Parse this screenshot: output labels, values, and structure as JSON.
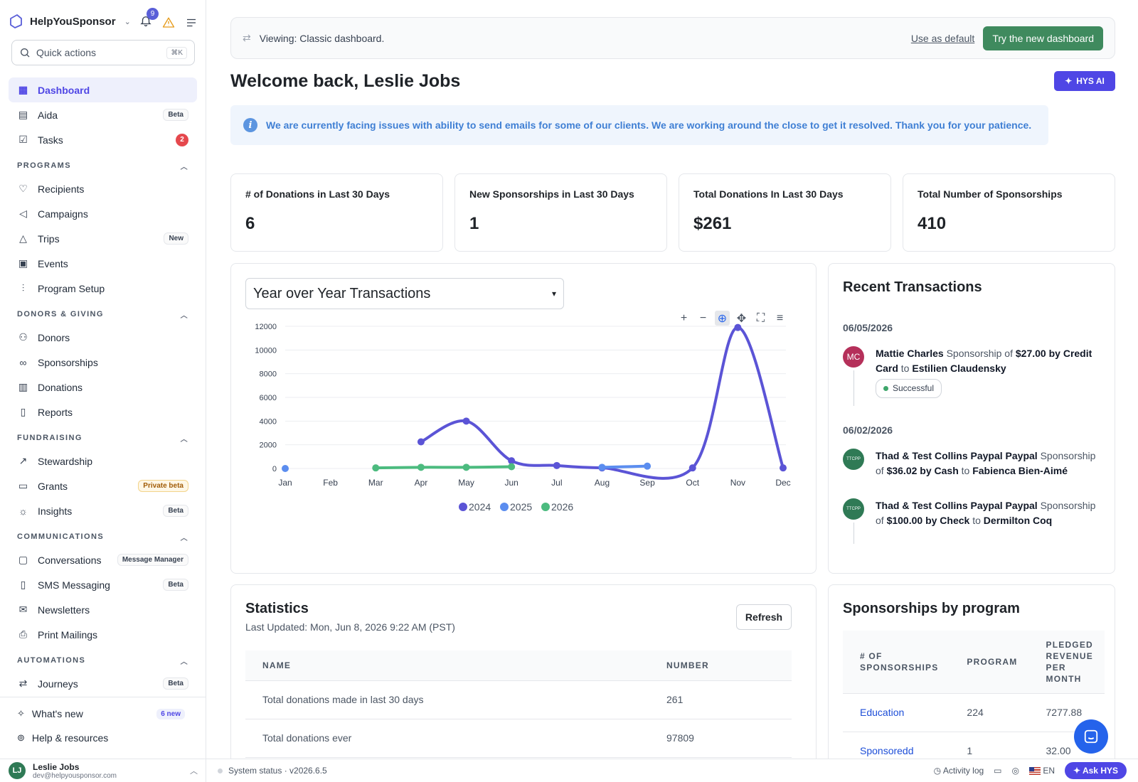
{
  "brand": {
    "name": "HelpYouSponsor",
    "notifications": "9"
  },
  "quick": {
    "placeholder": "Quick actions",
    "shortcut": "⌘K"
  },
  "nav": {
    "top": [
      {
        "label": "Dashboard",
        "icon": "dashboard-icon",
        "active": true
      },
      {
        "label": "Aida",
        "icon": "clipboard-icon",
        "badge": "Beta"
      },
      {
        "label": "Tasks",
        "icon": "tasks-icon",
        "badge": "2"
      }
    ],
    "sections": [
      {
        "title": "PROGRAMS",
        "items": [
          "Recipients",
          "Campaigns",
          "Trips",
          "Events",
          "Program Setup"
        ],
        "badges": {
          "Trips": "New"
        }
      },
      {
        "title": "DONORS & GIVING",
        "items": [
          "Donors",
          "Sponsorships",
          "Donations",
          "Reports"
        ]
      },
      {
        "title": "FUNDRAISING",
        "items": [
          "Stewardship",
          "Grants",
          "Insights"
        ],
        "badges": {
          "Grants": "Private beta",
          "Insights": "Beta"
        }
      },
      {
        "title": "COMMUNICATIONS",
        "items": [
          "Conversations",
          "SMS Messaging",
          "Newsletters",
          "Print Mailings"
        ],
        "badges": {
          "Conversations": "Message Manager",
          "SMS Messaging": "Beta"
        }
      },
      {
        "title": "AUTOMATIONS",
        "items": [
          "Journeys"
        ],
        "badges": {
          "Journeys": "Beta"
        }
      }
    ],
    "footer": [
      {
        "label": "What's new",
        "badge": "6 new"
      },
      {
        "label": "Help & resources"
      }
    ]
  },
  "user": {
    "initials": "LJ",
    "name": "Leslie Jobs",
    "email": "dev@helpyousponsor.com"
  },
  "banner": {
    "text": "Viewing: Classic dashboard.",
    "use_default": "Use as default",
    "try_new": "Try the new dashboard"
  },
  "welcome": "Welcome back, Leslie Jobs",
  "hys_ai": "HYS AI",
  "alert": "We are currently facing issues with ability to send emails for some of our clients. We are working around the close to get it resolved. Thank you for your patience.",
  "cards": [
    {
      "label": "# of Donations in Last 30 Days",
      "value": "6"
    },
    {
      "label": "New Sponsorships in Last 30 Days",
      "value": "1"
    },
    {
      "label": "Total Donations In Last 30 Days",
      "value": "$261"
    },
    {
      "label": "Total Number of Sponsorships",
      "value": "410"
    }
  ],
  "chart_select": "Year over Year Transactions",
  "chart_data": {
    "type": "line",
    "categories": [
      "Jan",
      "Feb",
      "Mar",
      "Apr",
      "May",
      "Jun",
      "Jul",
      "Aug",
      "Sep",
      "Oct",
      "Nov",
      "Dec"
    ],
    "ylim": [
      0,
      12000
    ],
    "yticks": [
      0,
      2000,
      4000,
      6000,
      8000,
      10000,
      12000
    ],
    "legend_position": "bottom",
    "series": [
      {
        "name": "2024",
        "color": "#5b54d6",
        "points": [
          [
            3,
            2250
          ],
          [
            4,
            4000
          ],
          [
            5,
            650
          ],
          [
            6,
            250
          ],
          [
            7,
            50
          ],
          [
            9,
            50
          ],
          [
            10,
            11900
          ],
          [
            11,
            50
          ]
        ]
      },
      {
        "name": "2025",
        "color": "#5b8def",
        "points": [
          [
            0,
            0
          ],
          [
            7,
            100
          ],
          [
            8,
            200
          ]
        ]
      },
      {
        "name": "2026",
        "color": "#4cbb7f",
        "points": [
          [
            2,
            50
          ],
          [
            3,
            100
          ],
          [
            4,
            100
          ],
          [
            5,
            150
          ]
        ]
      }
    ]
  },
  "recent": {
    "title": "Recent Transactions",
    "groups": [
      {
        "date": "06/05/2026",
        "items": [
          {
            "initials": "MC",
            "color": "#b5305a",
            "donor": "Mattie Charles",
            "kind": "Sponsorship of",
            "amount": "$27.00 by Credit Card",
            "to": "to",
            "recipient": "Estilien Claudensky",
            "status": "Successful"
          }
        ]
      },
      {
        "date": "06/02/2026",
        "items": [
          {
            "initials": "TTCPP",
            "color": "#2f7a55",
            "donor": "Thad & Test Collins Paypal Paypal",
            "kind": "Sponsorship of",
            "amount": "$36.02 by Cash",
            "to": "to",
            "recipient": "Fabienca Bien-Aimé"
          },
          {
            "initials": "TTCPP",
            "color": "#2f7a55",
            "donor": "Thad & Test Collins Paypal Paypal",
            "kind": "Sponsorship of",
            "amount": "$100.00 by Check",
            "to": "to",
            "recipient": "Dermilton Coq"
          }
        ]
      }
    ]
  },
  "stats": {
    "title": "Statistics",
    "updated": "Last Updated: Mon, Jun 8, 2026 9:22 AM (PST)",
    "refresh": "Refresh",
    "headers": [
      "NAME",
      "NUMBER"
    ],
    "rows": [
      [
        "Total donations made in last 30 days",
        "261"
      ],
      [
        "Total donations ever",
        "97809"
      ]
    ]
  },
  "programs": {
    "title": "Sponsorships by program",
    "headers": [
      "# OF SPONSORSHIPS",
      "PROGRAM",
      "PLEDGED REVENUE PER MONTH"
    ],
    "rows": [
      [
        "Education",
        "224",
        "7277.88"
      ],
      [
        "Sponsoredd",
        "1",
        "32.00"
      ]
    ]
  },
  "status": {
    "text": "System status · v2026.6.5",
    "activity": "Activity log",
    "lang": "EN",
    "ask": "Ask HYS"
  }
}
